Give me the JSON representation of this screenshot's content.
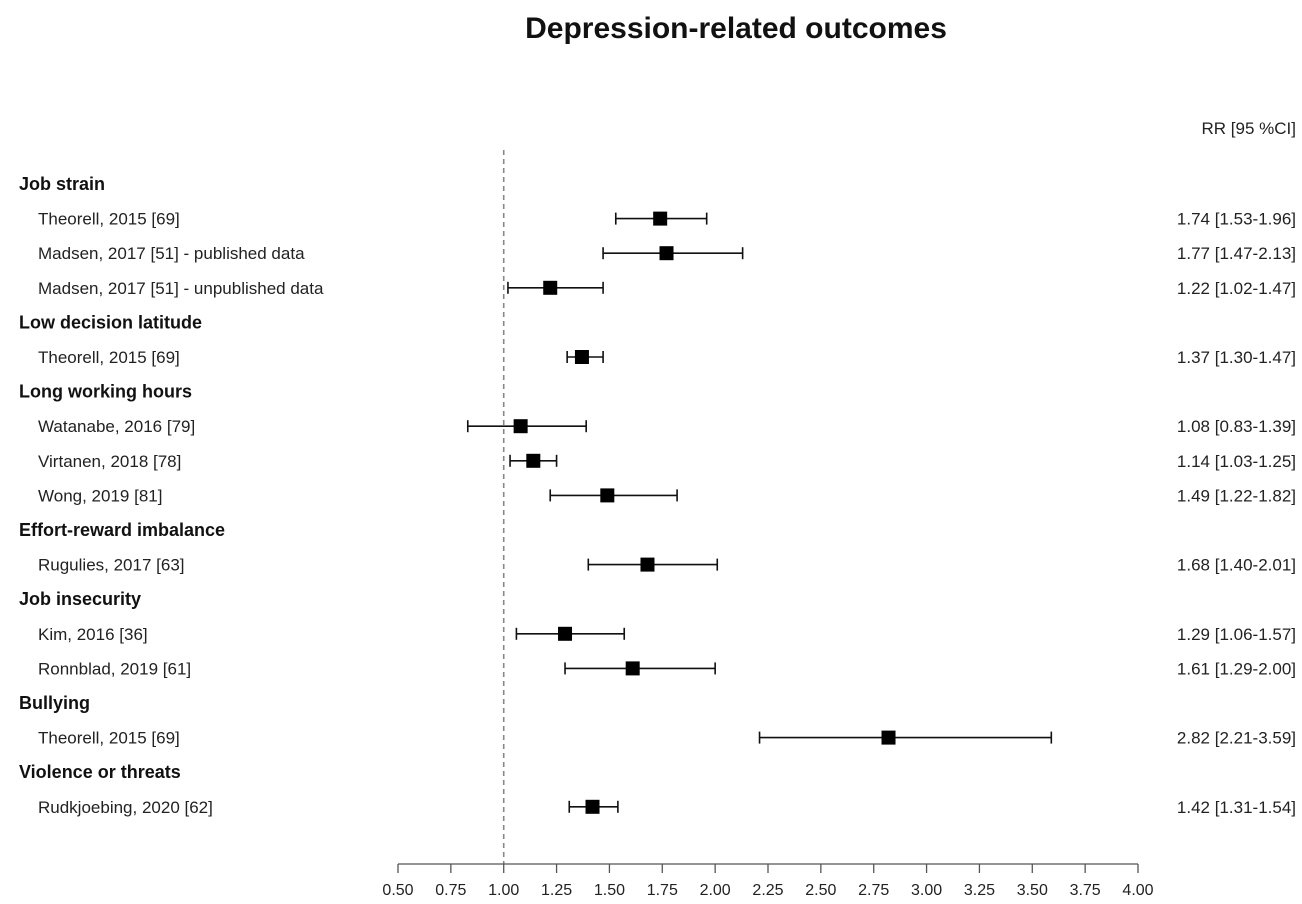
{
  "chart_data": {
    "type": "forest",
    "title": "Depression-related outcomes",
    "column_header": "RR [95 %CI]",
    "reference_line": 1.0,
    "xlim": [
      0.5,
      4.0
    ],
    "x_ticks": [
      "0.50",
      "0.75",
      "1.00",
      "1.25",
      "1.50",
      "1.75",
      "2.00",
      "2.25",
      "2.50",
      "2.75",
      "3.00",
      "3.25",
      "3.50",
      "3.75",
      "4.00"
    ],
    "x_tick_values": [
      0.5,
      0.75,
      1.0,
      1.25,
      1.5,
      1.75,
      2.0,
      2.25,
      2.5,
      2.75,
      3.0,
      3.25,
      3.5,
      3.75,
      4.0
    ],
    "groups": [
      {
        "name": "Job strain",
        "studies": [
          {
            "label": "Theorell, 2015 [69]",
            "rr": 1.74,
            "lo": 1.53,
            "hi": 1.96,
            "text": "1.74 [1.53-1.96]"
          },
          {
            "label": "Madsen, 2017 [51] - published data",
            "rr": 1.77,
            "lo": 1.47,
            "hi": 2.13,
            "text": "1.77 [1.47-2.13]"
          },
          {
            "label": "Madsen, 2017 [51] - unpublished data",
            "rr": 1.22,
            "lo": 1.02,
            "hi": 1.47,
            "text": "1.22 [1.02-1.47]"
          }
        ]
      },
      {
        "name": "Low decision latitude",
        "studies": [
          {
            "label": "Theorell, 2015 [69]",
            "rr": 1.37,
            "lo": 1.3,
            "hi": 1.47,
            "text": "1.37 [1.30-1.47]"
          }
        ]
      },
      {
        "name": "Long working hours",
        "studies": [
          {
            "label": "Watanabe, 2016 [79]",
            "rr": 1.08,
            "lo": 0.83,
            "hi": 1.39,
            "text": "1.08 [0.83-1.39]"
          },
          {
            "label": "Virtanen, 2018 [78]",
            "rr": 1.14,
            "lo": 1.03,
            "hi": 1.25,
            "text": "1.14 [1.03-1.25]"
          },
          {
            "label": "Wong, 2019 [81]",
            "rr": 1.49,
            "lo": 1.22,
            "hi": 1.82,
            "text": "1.49 [1.22-1.82]"
          }
        ]
      },
      {
        "name": "Effort-reward imbalance",
        "studies": [
          {
            "label": "Rugulies, 2017 [63]",
            "rr": 1.68,
            "lo": 1.4,
            "hi": 2.01,
            "text": "1.68 [1.40-2.01]"
          }
        ]
      },
      {
        "name": "Job insecurity",
        "studies": [
          {
            "label": "Kim, 2016 [36]",
            "rr": 1.29,
            "lo": 1.06,
            "hi": 1.57,
            "text": "1.29 [1.06-1.57]"
          },
          {
            "label": "Ronnblad, 2019 [61]",
            "rr": 1.61,
            "lo": 1.29,
            "hi": 2.0,
            "text": "1.61 [1.29-2.00]"
          }
        ]
      },
      {
        "name": "Bullying",
        "studies": [
          {
            "label": "Theorell, 2015 [69]",
            "rr": 2.82,
            "lo": 2.21,
            "hi": 3.59,
            "text": "2.82 [2.21-3.59]"
          }
        ]
      },
      {
        "name": "Violence or threats",
        "studies": [
          {
            "label": "Rudkjoebing, 2020 [62]",
            "rr": 1.42,
            "lo": 1.31,
            "hi": 1.54,
            "text": "1.42 [1.31-1.54]"
          }
        ]
      }
    ]
  }
}
